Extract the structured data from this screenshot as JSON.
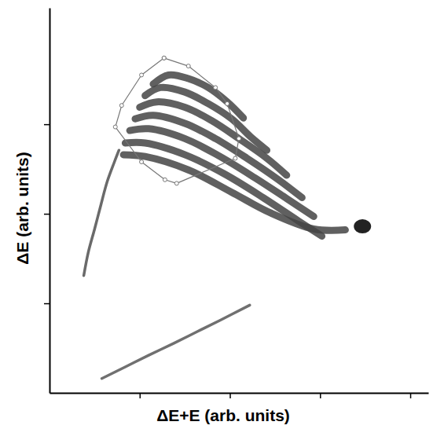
{
  "chart_data": {
    "type": "line",
    "x_label": "ΔE+E (arb. units)",
    "y_label": "ΔE (arb. units)",
    "xlim": [
      0,
      4.2
    ],
    "ylim": [
      0,
      4.3
    ],
    "xticks": [
      1,
      2,
      3,
      4
    ],
    "yticks": [
      1,
      2,
      3
    ],
    "tick_labels": false,
    "grid": false,
    "series": [
      {
        "type": "line",
        "line_style": "solid",
        "color": "#444444",
        "x": [
          1.15,
          1.32,
          1.54,
          1.76,
          1.97,
          2.15
        ],
        "values": [
          3.45,
          3.55,
          3.51,
          3.41,
          3.25,
          3.07
        ]
      },
      {
        "type": "line",
        "line_style": "solid",
        "color": "#444444",
        "x": [
          1.06,
          1.23,
          1.5,
          1.76,
          2.02,
          2.23,
          2.41
        ],
        "values": [
          3.32,
          3.41,
          3.36,
          3.23,
          3.06,
          2.86,
          2.71
        ]
      },
      {
        "type": "line",
        "line_style": "solid",
        "color": "#444444",
        "x": [
          1.0,
          1.19,
          1.5,
          1.8,
          2.1,
          2.41,
          2.63
        ],
        "values": [
          3.19,
          3.25,
          3.19,
          3.04,
          2.84,
          2.62,
          2.43
        ]
      },
      {
        "type": "line",
        "line_style": "solid",
        "color": "#444444",
        "x": [
          0.95,
          1.15,
          1.5,
          1.84,
          2.19,
          2.54,
          2.8
        ],
        "values": [
          3.06,
          3.1,
          3.01,
          2.84,
          2.62,
          2.38,
          2.18
        ]
      },
      {
        "type": "line",
        "line_style": "solid",
        "color": "#444444",
        "x": [
          0.89,
          1.1,
          1.5,
          1.89,
          2.28,
          2.63,
          2.93
        ],
        "values": [
          2.93,
          2.95,
          2.84,
          2.64,
          2.4,
          2.17,
          1.97
        ]
      },
      {
        "type": "line",
        "line_style": "solid",
        "color": "#444444",
        "x": [
          0.84,
          1.06,
          1.5,
          1.93,
          2.37,
          2.76,
          3.02
        ],
        "values": [
          2.79,
          2.79,
          2.66,
          2.45,
          2.18,
          1.92,
          1.75
        ]
      },
      {
        "type": "line",
        "line_style": "solid",
        "color": "#444444",
        "x": [
          0.82,
          1.06,
          1.54,
          2.02,
          2.45,
          2.93,
          3.28
        ],
        "values": [
          2.66,
          2.64,
          2.49,
          2.24,
          2.01,
          1.83,
          1.82
        ]
      },
      {
        "type": "scatter",
        "marker": "circle",
        "color": "#222222",
        "x": [
          3.47
        ],
        "values": [
          1.86
        ]
      },
      {
        "type": "line",
        "line_style": "solid",
        "color": "#6a6a6a",
        "x": [
          0.38,
          0.43,
          0.5,
          0.57,
          0.64,
          0.72,
          0.77
        ],
        "values": [
          1.31,
          1.57,
          1.83,
          2.1,
          2.36,
          2.58,
          2.71
        ]
      },
      {
        "type": "line",
        "line_style": "solid",
        "color": "#707070",
        "x": [
          0.58,
          0.84,
          1.1,
          1.37,
          1.63,
          1.89,
          2.22
        ],
        "values": [
          0.16,
          0.29,
          0.42,
          0.55,
          0.68,
          0.81,
          0.98
        ]
      },
      {
        "type": "line",
        "line_style": "solid",
        "marker": "circle",
        "color": "#777777",
        "x": [
          1.27,
          1.54,
          1.84,
          1.97,
          2.1,
          2.06,
          1.41,
          1.28,
          1.02,
          0.73,
          0.8,
          1.02,
          1.27
        ],
        "values": [
          3.74,
          3.65,
          3.41,
          3.23,
          2.84,
          2.62,
          2.34,
          2.38,
          2.58,
          2.97,
          3.21,
          3.55,
          3.74
        ]
      }
    ]
  }
}
